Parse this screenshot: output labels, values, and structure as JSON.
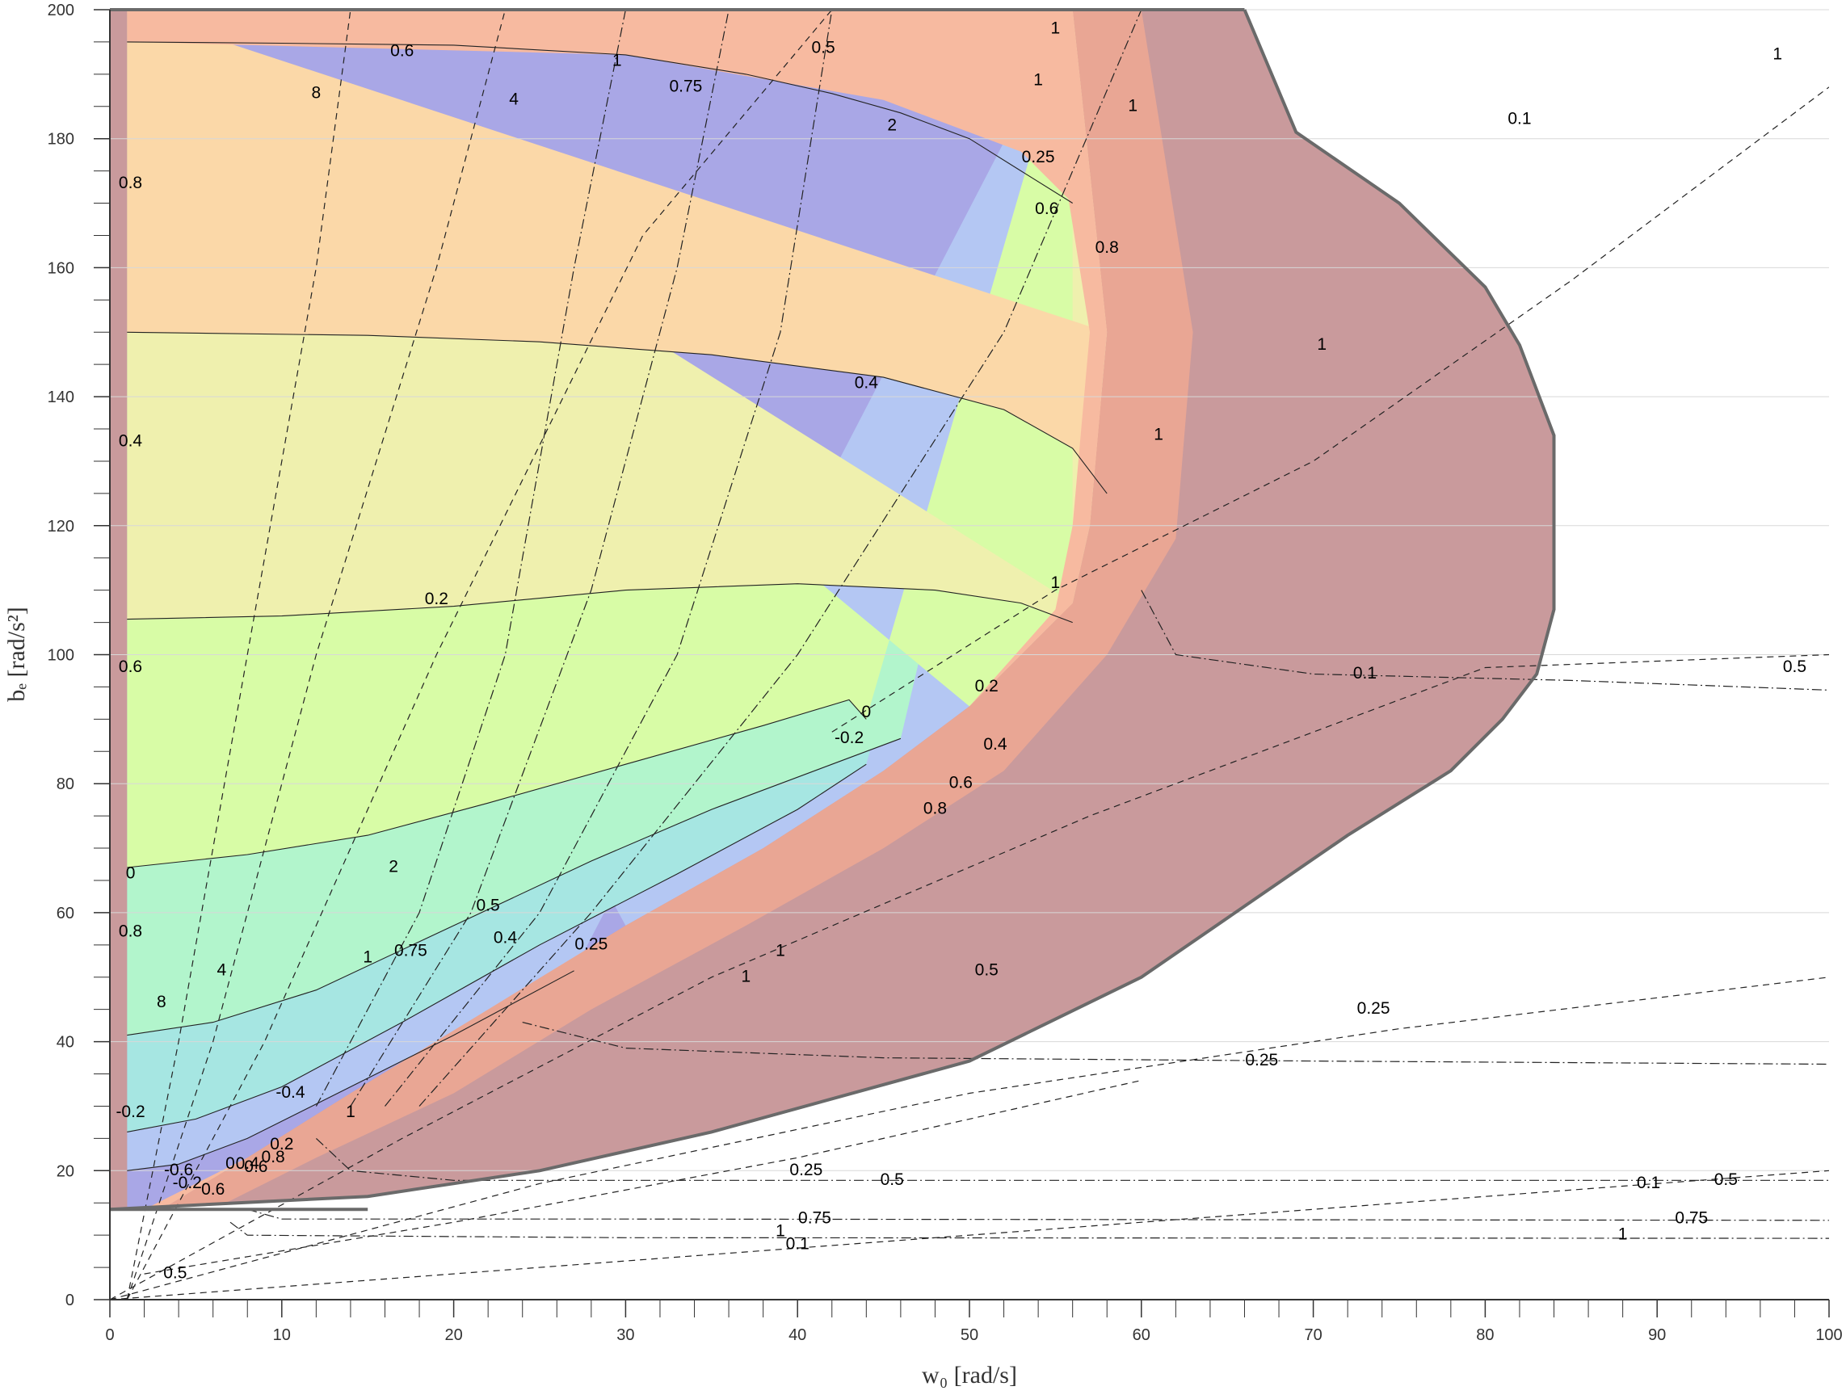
{
  "chart_data": {
    "type": "contour",
    "xlabel": "w₀ [rad/s]",
    "ylabel": "bₑ [rad/s²]",
    "xlim": [
      0,
      100
    ],
    "ylim": [
      0,
      200
    ],
    "x_ticks": [
      "0",
      "10",
      "20",
      "30",
      "40",
      "50",
      "60",
      "70",
      "80",
      "90",
      "100"
    ],
    "y_ticks": [
      "0",
      "20",
      "40",
      "60",
      "80",
      "100",
      "120",
      "140",
      "160",
      "180",
      "200"
    ],
    "grid": "horizontal",
    "colors": {
      "outside_region": "#c99a9c",
      "level_neg_0_8": "#a9a7e6",
      "level_neg_0_6": "#b4c7f3",
      "level_neg_0_4": "#a6e6e2",
      "level_neg_0_2": "#b2f5cc",
      "level_0": "#d8fca6",
      "level_0_2": "#eff0ae",
      "level_0_4": "#fbd8a8",
      "level_0_6": "#f7baa0",
      "level_0_8": "#e9a694"
    },
    "filled_contour_levels": [
      "-0.8",
      "-0.6",
      "-0.4",
      "-0.2",
      "0",
      "0.2",
      "0.4",
      "0.6",
      "0.8",
      "1"
    ],
    "region_boundary": [
      [
        0,
        14
      ],
      [
        15,
        16
      ],
      [
        25,
        20
      ],
      [
        35,
        26
      ],
      [
        50,
        37
      ],
      [
        60,
        50
      ],
      [
        66,
        61
      ],
      [
        72,
        72
      ],
      [
        78,
        82
      ],
      [
        81,
        90
      ],
      [
        83,
        97
      ],
      [
        84,
        107
      ],
      [
        84,
        134
      ],
      [
        82,
        148
      ],
      [
        80,
        157
      ],
      [
        75,
        170
      ],
      [
        69,
        181
      ],
      [
        66,
        200
      ],
      [
        0,
        200
      ]
    ],
    "horizontal_contour_lines": [
      {
        "label": "0.6",
        "points": [
          [
            1,
            195
          ],
          [
            10,
            194.8
          ],
          [
            20,
            194.5
          ],
          [
            30,
            193
          ],
          [
            37,
            190
          ],
          [
            42,
            187
          ],
          [
            46,
            184
          ],
          [
            50,
            180
          ],
          [
            53,
            175
          ],
          [
            56,
            170
          ]
        ]
      },
      {
        "label": "0.4",
        "points": [
          [
            1,
            150
          ],
          [
            15,
            149.5
          ],
          [
            25,
            148.5
          ],
          [
            35,
            146.5
          ],
          [
            45,
            143
          ],
          [
            52,
            138
          ],
          [
            56,
            132
          ],
          [
            58,
            125
          ]
        ]
      },
      {
        "label": "0.2",
        "points": [
          [
            1,
            105.5
          ],
          [
            10,
            106
          ],
          [
            20,
            107.5
          ],
          [
            30,
            110
          ],
          [
            40,
            111
          ],
          [
            48,
            110
          ],
          [
            53,
            108
          ],
          [
            56,
            105
          ]
        ]
      },
      {
        "label": "0",
        "points": [
          [
            1,
            67
          ],
          [
            8,
            69
          ],
          [
            15,
            72
          ],
          [
            22,
            77
          ],
          [
            30,
            83
          ],
          [
            38,
            89
          ],
          [
            43,
            93
          ],
          [
            44,
            90
          ]
        ]
      },
      {
        "label": "-0.2",
        "points": [
          [
            1,
            41
          ],
          [
            6,
            43
          ],
          [
            12,
            48
          ],
          [
            20,
            58
          ],
          [
            28,
            68
          ],
          [
            35,
            76
          ],
          [
            42,
            83
          ],
          [
            46,
            87
          ]
        ]
      },
      {
        "label": "-0.4",
        "points": [
          [
            1,
            26
          ],
          [
            5,
            28
          ],
          [
            10,
            33
          ],
          [
            17,
            43
          ],
          [
            25,
            55
          ],
          [
            33,
            66
          ],
          [
            40,
            76
          ],
          [
            44,
            83
          ]
        ]
      },
      {
        "label": "-0.6",
        "points": [
          [
            1,
            20
          ],
          [
            4,
            21
          ],
          [
            8,
            25
          ],
          [
            14,
            33
          ],
          [
            20,
            41
          ],
          [
            27,
            51
          ]
        ]
      }
    ],
    "dashed_curve_labels": [
      "8",
      "4",
      "2",
      "1",
      "0.75",
      "0.5",
      "0.25",
      "0.1"
    ],
    "dashed_curves": [
      {
        "label": "8",
        "points": [
          [
            1,
            0
          ],
          [
            4,
            40
          ],
          [
            8,
            100
          ],
          [
            12,
            160
          ],
          [
            14,
            200
          ]
        ]
      },
      {
        "label": "4",
        "points": [
          [
            1,
            0
          ],
          [
            6,
            40
          ],
          [
            12,
            100
          ],
          [
            19,
            160
          ],
          [
            23,
            200
          ]
        ]
      },
      {
        "label": "2",
        "points": [
          [
            1,
            0
          ],
          [
            9,
            40
          ],
          [
            19,
            100
          ],
          [
            31,
            165
          ],
          [
            42,
            200
          ]
        ]
      },
      {
        "label": "0.5",
        "points": [
          [
            0,
            0
          ],
          [
            17,
            25
          ],
          [
            35,
            50
          ],
          [
            57,
            75
          ],
          [
            80,
            98
          ],
          [
            100,
            100
          ]
        ]
      },
      {
        "label": "0.25",
        "points": [
          [
            0,
            0
          ],
          [
            25,
            18
          ],
          [
            50,
            32
          ],
          [
            75,
            42
          ],
          [
            100,
            50
          ]
        ]
      },
      {
        "label": "0.1",
        "points": [
          [
            0,
            0
          ],
          [
            30,
            6
          ],
          [
            60,
            12
          ],
          [
            100,
            20
          ]
        ]
      },
      {
        "label": "1",
        "points": [
          [
            42,
            88
          ],
          [
            55,
            110
          ],
          [
            70,
            130
          ],
          [
            85,
            158
          ],
          [
            100,
            188
          ]
        ]
      },
      {
        "label": "0.5",
        "points": [
          [
            2,
            4
          ],
          [
            20,
            12
          ],
          [
            40,
            22
          ],
          [
            60,
            34
          ]
        ]
      }
    ],
    "dashdot_curves": [
      {
        "label": "1",
        "points": [
          [
            12,
            30
          ],
          [
            18,
            60
          ],
          [
            23,
            100
          ],
          [
            27,
            160
          ],
          [
            30,
            200
          ]
        ]
      },
      {
        "label": "0.75",
        "points": [
          [
            14,
            30
          ],
          [
            21,
            60
          ],
          [
            28,
            110
          ],
          [
            33,
            160
          ],
          [
            36,
            200
          ]
        ]
      },
      {
        "label": "0.5",
        "points": [
          [
            16,
            30
          ],
          [
            25,
            60
          ],
          [
            33,
            100
          ],
          [
            39,
            150
          ],
          [
            42,
            200
          ]
        ]
      },
      {
        "label": "0.25",
        "points": [
          [
            18,
            30
          ],
          [
            28,
            60
          ],
          [
            40,
            100
          ],
          [
            52,
            150
          ],
          [
            60,
            200
          ]
        ]
      },
      {
        "label": "0.1",
        "points": [
          [
            60,
            110
          ],
          [
            62,
            100
          ],
          [
            70,
            97
          ],
          [
            85,
            96
          ],
          [
            100,
            94.5
          ]
        ]
      },
      {
        "label": "0.25",
        "points": [
          [
            24,
            43
          ],
          [
            30,
            39
          ],
          [
            45,
            37.5
          ],
          [
            70,
            37
          ],
          [
            100,
            36.5
          ]
        ]
      },
      {
        "label": "0.5",
        "points": [
          [
            12,
            25
          ],
          [
            14,
            20
          ],
          [
            20,
            18.5
          ],
          [
            50,
            18.5
          ],
          [
            100,
            18.5
          ]
        ]
      },
      {
        "label": "0.75",
        "points": [
          [
            8,
            14
          ],
          [
            10,
            12.5
          ],
          [
            30,
            12.5
          ],
          [
            100,
            12.3
          ]
        ]
      },
      {
        "label": "1",
        "points": [
          [
            7,
            12
          ],
          [
            8,
            10
          ],
          [
            30,
            9.6
          ],
          [
            100,
            9.5
          ]
        ]
      }
    ],
    "contour_labels": [
      {
        "text": "0.6",
        "x": 17,
        "y": 193.5
      },
      {
        "text": "8",
        "x": 12,
        "y": 187
      },
      {
        "text": "4",
        "x": 23.5,
        "y": 186
      },
      {
        "text": "1",
        "x": 29.5,
        "y": 192
      },
      {
        "text": "0.75",
        "x": 33.5,
        "y": 188
      },
      {
        "text": "0.5",
        "x": 41.5,
        "y": 194
      },
      {
        "text": "2",
        "x": 45.5,
        "y": 182
      },
      {
        "text": "1",
        "x": 55,
        "y": 197
      },
      {
        "text": "1",
        "x": 54,
        "y": 189
      },
      {
        "text": "0.25",
        "x": 54,
        "y": 177
      },
      {
        "text": "0.6",
        "x": 54.5,
        "y": 169
      },
      {
        "text": "0.8",
        "x": 58,
        "y": 163
      },
      {
        "text": "1",
        "x": 59.5,
        "y": 185
      },
      {
        "text": "0.4",
        "x": 44,
        "y": 142
      },
      {
        "text": "1",
        "x": 61,
        "y": 134
      },
      {
        "text": "0.2",
        "x": 19,
        "y": 108.5
      },
      {
        "text": "0.2",
        "x": 51,
        "y": 95
      },
      {
        "text": "0",
        "x": 44,
        "y": 91
      },
      {
        "text": "-0.2",
        "x": 43,
        "y": 87
      },
      {
        "text": "0.4",
        "x": 51.5,
        "y": 86
      },
      {
        "text": "0.6",
        "x": 49.5,
        "y": 80
      },
      {
        "text": "0.8",
        "x": 48,
        "y": 76
      },
      {
        "text": "0.1",
        "x": 73,
        "y": 97
      },
      {
        "text": "0.5",
        "x": 98,
        "y": 98
      },
      {
        "text": "1",
        "x": 97,
        "y": 193
      },
      {
        "text": "0.1",
        "x": 82,
        "y": 183
      },
      {
        "text": "1",
        "x": 70.5,
        "y": 148
      },
      {
        "text": "1",
        "x": 55,
        "y": 111
      },
      {
        "text": "2",
        "x": 16.5,
        "y": 67
      },
      {
        "text": "0.5",
        "x": 22,
        "y": 61
      },
      {
        "text": "0.75",
        "x": 17.5,
        "y": 54
      },
      {
        "text": "1",
        "x": 15,
        "y": 53
      },
      {
        "text": "0.4",
        "x": 23,
        "y": 56
      },
      {
        "text": "0.25",
        "x": 28,
        "y": 55
      },
      {
        "text": "4",
        "x": 6.5,
        "y": 51
      },
      {
        "text": "8",
        "x": 3,
        "y": 46
      },
      {
        "text": "1",
        "x": 39,
        "y": 54
      },
      {
        "text": "1",
        "x": 37,
        "y": 50
      },
      {
        "text": "0.5",
        "x": 51,
        "y": 51
      },
      {
        "text": "-0.4",
        "x": 10.5,
        "y": 32
      },
      {
        "text": "1",
        "x": 14,
        "y": 29
      },
      {
        "text": "-0.6",
        "x": 4,
        "y": 20
      },
      {
        "text": "0.2",
        "x": 10,
        "y": 24
      },
      {
        "text": "0",
        "x": 7,
        "y": 21
      },
      {
        "text": "0.4",
        "x": 8,
        "y": 21
      },
      {
        "text": "0.6",
        "x": 8.5,
        "y": 20.5
      },
      {
        "text": "0.8",
        "x": 9.5,
        "y": 22
      },
      {
        "text": "-0.2",
        "x": 4.5,
        "y": 18
      },
      {
        "text": "0.6",
        "x": 6,
        "y": 17
      },
      {
        "text": "0.25",
        "x": 73.5,
        "y": 45
      },
      {
        "text": "0.25",
        "x": 67,
        "y": 37
      },
      {
        "text": "0.25",
        "x": 40.5,
        "y": 20
      },
      {
        "text": "0.5",
        "x": 45.5,
        "y": 18.5
      },
      {
        "text": "0.1",
        "x": 89.5,
        "y": 18
      },
      {
        "text": "0.5",
        "x": 94,
        "y": 18.5
      },
      {
        "text": "0.75",
        "x": 41,
        "y": 12.5
      },
      {
        "text": "0.75",
        "x": 92,
        "y": 12.5
      },
      {
        "text": "1",
        "x": 39,
        "y": 10.5
      },
      {
        "text": "0.1",
        "x": 40,
        "y": 8.5
      },
      {
        "text": "1",
        "x": 88,
        "y": 10
      },
      {
        "text": "0.5",
        "x": 3.8,
        "y": 4
      },
      {
        "text": "0.8",
        "x": 1.2,
        "y": 173
      },
      {
        "text": "0.4",
        "x": 1.2,
        "y": 133
      },
      {
        "text": "0.6",
        "x": 1.2,
        "y": 98
      },
      {
        "text": "0",
        "x": 1.2,
        "y": 66
      },
      {
        "text": "0.8",
        "x": 1.2,
        "y": 57
      },
      {
        "text": "-0.2",
        "x": 1.2,
        "y": 29
      }
    ]
  }
}
